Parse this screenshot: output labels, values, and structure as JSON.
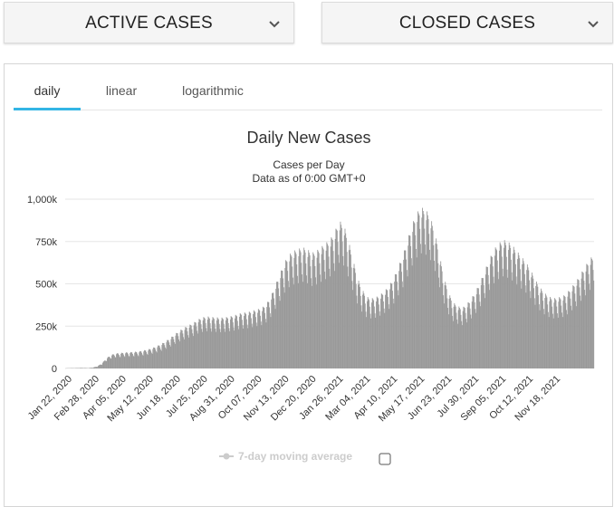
{
  "dropdowns": {
    "active_label": "ACTIVE CASES",
    "closed_label": "CLOSED CASES"
  },
  "tabs": {
    "daily": "daily",
    "linear": "linear",
    "logarithmic": "logarithmic",
    "accent": "#33b5e5"
  },
  "legend": {
    "label": "7-day moving average",
    "color": "#cccccc"
  },
  "colors": {
    "bars": "#999999",
    "grid": "#e6e6e6"
  },
  "chart_data": {
    "type": "bar",
    "title": "Daily New Cases",
    "subtitle_line1": "Cases per Day",
    "subtitle_line2": "Data as of 0:00 GMT+0",
    "xlabel": "",
    "ylabel": "",
    "ylim": [
      0,
      1000000
    ],
    "y_ticks": [
      0,
      250000,
      500000,
      750000,
      1000000
    ],
    "y_tick_labels": [
      "0",
      "250k",
      "500k",
      "750k",
      "1,000k"
    ],
    "x_range": [
      "2020-01-22",
      "2021-12-21"
    ],
    "x_tick_labels": [
      "Jan 22, 2020",
      "Feb 28, 2020",
      "Apr 05, 2020",
      "May 12, 2020",
      "Jun 18, 2020",
      "Jul 25, 2020",
      "Aug 31, 2020",
      "Oct 07, 2020",
      "Nov 13, 2020",
      "Dec 20, 2020",
      "Jan 26, 2021",
      "Mar 04, 2021",
      "Apr 10, 2021",
      "May 17, 2021",
      "Jun 23, 2021",
      "Jul 30, 2021",
      "Sep 05, 2021",
      "Oct 12, 2021",
      "Nov 18, 2021"
    ],
    "series": [
      {
        "name": "Daily New Cases",
        "weekly_values": [
          1000,
          2000,
          2000,
          3000,
          3000,
          2000,
          5000,
          12000,
          28000,
          55000,
          72000,
          80000,
          82000,
          85000,
          86000,
          88000,
          90000,
          95000,
          100000,
          108000,
          118000,
          130000,
          145000,
          162000,
          182000,
          200000,
          215000,
          228000,
          240000,
          258000,
          270000,
          275000,
          272000,
          270000,
          268000,
          270000,
          275000,
          280000,
          290000,
          295000,
          298000,
          305000,
          312000,
          320000,
          340000,
          380000,
          440000,
          500000,
          560000,
          600000,
          620000,
          630000,
          640000,
          630000,
          610000,
          620000,
          640000,
          660000,
          680000,
          720000,
          780000,
          760000,
          680000,
          580000,
          480000,
          420000,
          380000,
          370000,
          375000,
          390000,
          410000,
          440000,
          480000,
          540000,
          600000,
          680000,
          760000,
          820000,
          850000,
          840000,
          800000,
          720000,
          600000,
          480000,
          400000,
          350000,
          330000,
          320000,
          340000,
          370000,
          410000,
          460000,
          520000,
          580000,
          630000,
          660000,
          680000,
          670000,
          650000,
          620000,
          590000,
          560000,
          520000,
          470000,
          430000,
          400000,
          380000,
          370000,
          375000,
          380000,
          400000,
          430000,
          460000,
          500000,
          540000,
          580000,
          600000
        ]
      }
    ]
  }
}
